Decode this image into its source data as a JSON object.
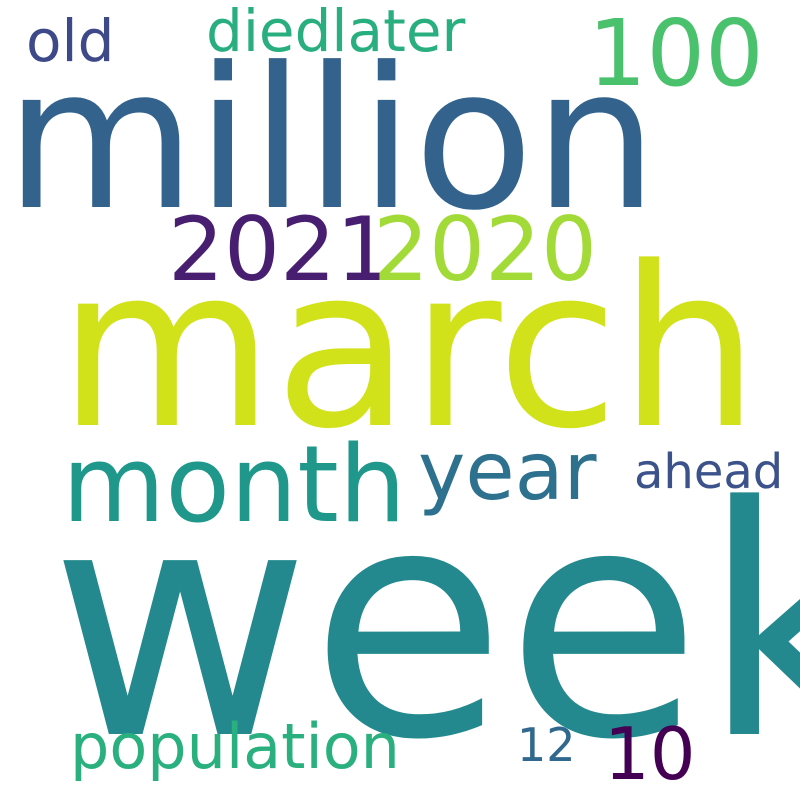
{
  "words": {
    "week": {
      "text": "week",
      "color": "#23898e"
    },
    "march": {
      "text": "march",
      "color": "#d1e21b"
    },
    "million": {
      "text": "million",
      "color": "#33638d"
    },
    "month": {
      "text": "month",
      "color": "#1f988b"
    },
    "year": {
      "text": "year",
      "color": "#2d718e"
    },
    "w2021": {
      "text": "2021",
      "color": "#481f70"
    },
    "w2020": {
      "text": "2020",
      "color": "#a2da37"
    },
    "w100": {
      "text": "100",
      "color": "#4ac16d"
    },
    "population": {
      "text": "population",
      "color": "#2ab07f"
    },
    "diedlater": {
      "text": "diedlater",
      "color": "#29af7f"
    },
    "ahead": {
      "text": "ahead",
      "color": "#3b528b"
    },
    "old": {
      "text": "old",
      "color": "#3e4989"
    },
    "w10": {
      "text": "10",
      "color": "#440154"
    },
    "w12": {
      "text": "12",
      "color": "#31688e"
    }
  }
}
